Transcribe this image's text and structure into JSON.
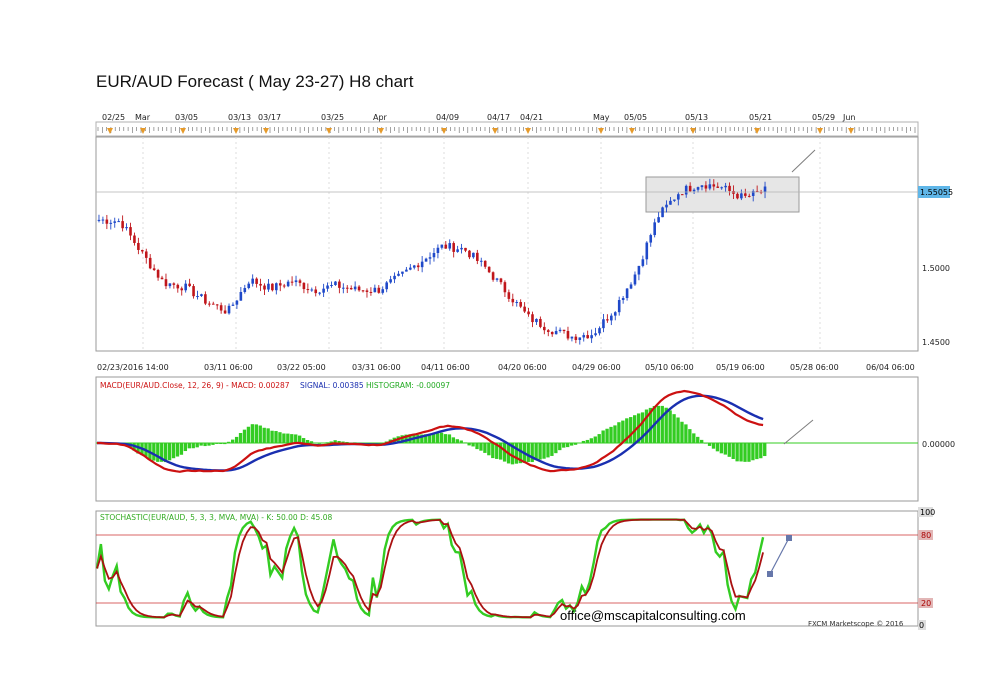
{
  "title": "EUR/AUD Forecast ( May 23-27) H8 chart",
  "top_axis_labels": [
    "02/25",
    "Mar",
    "03/05",
    "03/13",
    "03/17",
    "03/25",
    "Apr",
    "04/09",
    "04/17",
    "04/21",
    "May",
    "05/05",
    "05/13",
    "05/21",
    "05/29",
    "Jun"
  ],
  "bottom_axis_labels": [
    "02/23/2016 14:00",
    "03/11 06:00",
    "03/22 05:00",
    "03/31 06:00",
    "04/11 06:00",
    "04/20 06:00",
    "04/29 06:00",
    "05/10 06:00",
    "05/19 06:00",
    "05/28 06:00",
    "06/04 06:00"
  ],
  "price_axis": {
    "ticks": [
      "1.5000",
      "1.4500"
    ],
    "current_label": "1.55055"
  },
  "macd_panel": {
    "label_main": "MACD(EUR/AUD.Close, 12, 26, 9) - MACD: 0.00287",
    "label_signal": "SIGNAL: 0.00385",
    "label_hist": "HISTOGRAM: -0.00097",
    "zero_label": "0.00000"
  },
  "stoch_panel": {
    "label": "STOCHASTIC(EUR/AUD, 5, 3, 3, MVA, MVA) - K: 50.00  D: 45.08",
    "levels": [
      "100",
      "80",
      "20",
      "0"
    ]
  },
  "email": "office@mscapitalconsulting.com",
  "credit": "FXCM Marketscope © 2016",
  "colors": {
    "up": "#1f49c9",
    "down": "#c0161b",
    "macd": "#cc1111",
    "signal": "#1a2fb0",
    "hist": "#33cc22",
    "stoch_k": "#33cc22",
    "stoch_d": "#aa1111",
    "box": "#e8e8e8",
    "current": "#5fb6e8"
  },
  "chart_data": {
    "type": "line",
    "title": "EUR/AUD Forecast ( May 23-27) H8 chart",
    "price_anchor": [
      [
        "02/23/2016 14:00",
        1.533
      ],
      [
        "02/26",
        1.532
      ],
      [
        "03/01",
        1.51
      ],
      [
        "03/03",
        1.49
      ],
      [
        "03/07",
        1.487
      ],
      [
        "03/09",
        1.477
      ],
      [
        "03/11",
        1.47
      ],
      [
        "03/12",
        1.492
      ],
      [
        "03/16",
        1.486
      ],
      [
        "03/18",
        1.491
      ],
      [
        "03/22",
        1.485
      ],
      [
        "03/24",
        1.488
      ],
      [
        "03/28",
        1.485
      ],
      [
        "03/31",
        1.485
      ],
      [
        "04/02",
        1.494
      ],
      [
        "04/05",
        1.505
      ],
      [
        "04/08",
        1.515
      ],
      [
        "04/11",
        1.513
      ],
      [
        "04/13",
        1.5
      ],
      [
        "04/15",
        1.483
      ],
      [
        "04/18",
        1.466
      ],
      [
        "04/20",
        1.458
      ],
      [
        "04/23",
        1.453
      ],
      [
        "04/26",
        1.455
      ],
      [
        "04/28",
        1.472
      ],
      [
        "05/02",
        1.497
      ],
      [
        "05/05",
        1.535
      ],
      [
        "05/08",
        1.552
      ],
      [
        "05/11",
        1.558
      ],
      [
        "05/14",
        1.555
      ],
      [
        "05/17",
        1.548
      ],
      [
        "05/20",
        1.553
      ]
    ],
    "consolidation_box": {
      "from": "05/07",
      "to": "05/30",
      "low": 1.538,
      "high": 1.563
    },
    "current_price": 1.55055,
    "macd": {
      "macd": 0.00287,
      "signal": 0.00385,
      "histogram": -0.00097
    },
    "stochastic": {
      "k": 50.0,
      "d": 45.08,
      "overbought": 80,
      "oversold": 20
    }
  }
}
